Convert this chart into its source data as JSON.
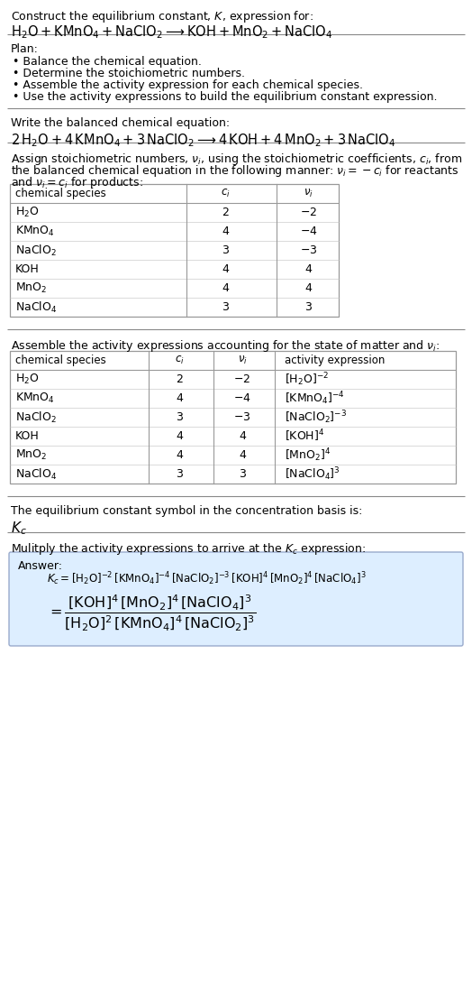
{
  "title_line1": "Construct the equilibrium constant, $K$, expression for:",
  "title_line2": "$\\mathrm{H_2O + KMnO_4 + NaClO_2 \\longrightarrow KOH + MnO_2 + NaClO_4}$",
  "plan_header": "Plan:",
  "plan_items": [
    "• Balance the chemical equation.",
    "• Determine the stoichiometric numbers.",
    "• Assemble the activity expression for each chemical species.",
    "• Use the activity expressions to build the equilibrium constant expression."
  ],
  "balanced_header": "Write the balanced chemical equation:",
  "balanced_eq": "$\\mathrm{2\\,H_2O + 4\\,KMnO_4 + 3\\,NaClO_2 \\longrightarrow 4\\,KOH + 4\\,MnO_2 + 3\\,NaClO_4}$",
  "stoich_intro1": "Assign stoichiometric numbers, $\\nu_i$, using the stoichiometric coefficients, $c_i$, from",
  "stoich_intro2": "the balanced chemical equation in the following manner: $\\nu_i = -c_i$ for reactants",
  "stoich_intro3": "and $\\nu_i = c_i$ for products:",
  "table1_headers": [
    "chemical species",
    "$c_i$",
    "$\\nu_i$"
  ],
  "table1_rows": [
    [
      "$\\mathrm{H_2O}$",
      "2",
      "$-2$"
    ],
    [
      "$\\mathrm{KMnO_4}$",
      "4",
      "$-4$"
    ],
    [
      "$\\mathrm{NaClO_2}$",
      "3",
      "$-3$"
    ],
    [
      "KOH",
      "4",
      "4"
    ],
    [
      "$\\mathrm{MnO_2}$",
      "4",
      "4"
    ],
    [
      "$\\mathrm{NaClO_4}$",
      "3",
      "3"
    ]
  ],
  "activity_intro": "Assemble the activity expressions accounting for the state of matter and $\\nu_i$:",
  "table2_headers": [
    "chemical species",
    "$c_i$",
    "$\\nu_i$",
    "activity expression"
  ],
  "table2_rows": [
    [
      "$\\mathrm{H_2O}$",
      "2",
      "$-2$",
      "$[\\mathrm{H_2O}]^{-2}$"
    ],
    [
      "$\\mathrm{KMnO_4}$",
      "4",
      "$-4$",
      "$[\\mathrm{KMnO_4}]^{-4}$"
    ],
    [
      "$\\mathrm{NaClO_2}$",
      "3",
      "$-3$",
      "$[\\mathrm{NaClO_2}]^{-3}$"
    ],
    [
      "KOH",
      "4",
      "4",
      "$[\\mathrm{KOH}]^4$"
    ],
    [
      "$\\mathrm{MnO_2}$",
      "4",
      "4",
      "$[\\mathrm{MnO_2}]^4$"
    ],
    [
      "$\\mathrm{NaClO_4}$",
      "3",
      "3",
      "$[\\mathrm{NaClO_4}]^3$"
    ]
  ],
  "kc_intro": "The equilibrium constant symbol in the concentration basis is:",
  "kc_symbol": "$K_c$",
  "multiply_intro": "Mulitply the activity expressions to arrive at the $K_c$ expression:",
  "answer_label": "Answer:",
  "answer_line1": "$K_c = [\\mathrm{H_2O}]^{-2}\\,[\\mathrm{KMnO_4}]^{-4}\\,[\\mathrm{NaClO_2}]^{-3}\\,[\\mathrm{KOH}]^4\\,[\\mathrm{MnO_2}]^4\\,[\\mathrm{NaClO_4}]^3$",
  "answer_eq_lhs": "$= \\dfrac{[\\mathrm{KOH}]^4\\,[\\mathrm{MnO_2}]^4\\,[\\mathrm{NaClO_4}]^3}{[\\mathrm{H_2O}]^2\\,[\\mathrm{KMnO_4}]^4\\,[\\mathrm{NaClO_2}]^3}$",
  "bg_color": "#ffffff",
  "text_color": "#000000",
  "table_border_color": "#999999",
  "table_inner_color": "#cccccc",
  "answer_box_facecolor": "#ddeeff",
  "answer_box_edgecolor": "#99aacc",
  "font_size": 9.0,
  "title_font_size": 9.0,
  "eq_font_size": 10.5,
  "table_font_size": 9.0,
  "small_font_size": 8.5
}
